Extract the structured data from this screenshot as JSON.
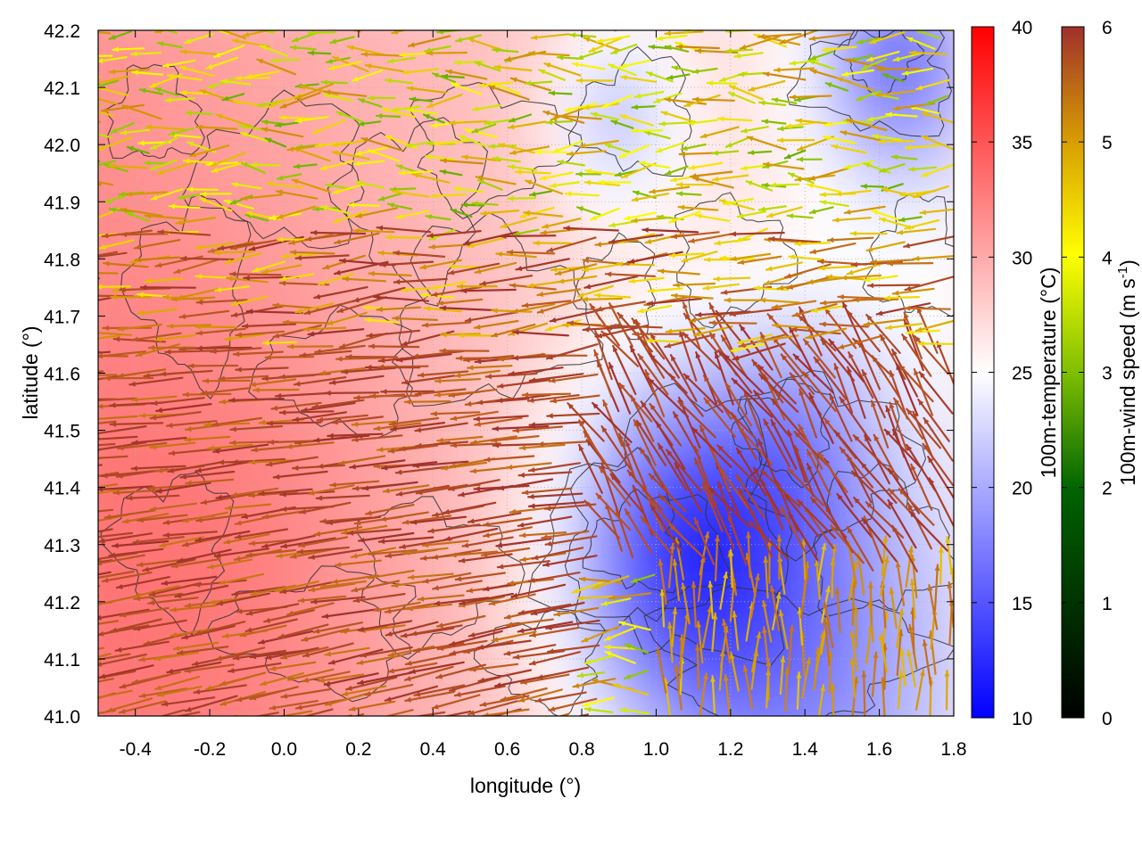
{
  "chart_data": {
    "type": "heatmap",
    "title": "",
    "xlabel": "longitude (°)",
    "ylabel": "latitude (°)",
    "xlim": [
      -0.5,
      1.8
    ],
    "ylim": [
      41.0,
      42.2
    ],
    "x_ticks": [
      "-0.4",
      "-0.2",
      "0.0",
      "0.2",
      "0.4",
      "0.6",
      "0.8",
      "1.0",
      "1.2",
      "1.4",
      "1.6",
      "1.8"
    ],
    "y_ticks": [
      "41.0",
      "41.1",
      "41.2",
      "41.3",
      "41.4",
      "41.5",
      "41.6",
      "41.7",
      "41.8",
      "41.9",
      "42.0",
      "42.1",
      "42.2"
    ],
    "grid": true,
    "layers": [
      "temperature field (color)",
      "contours (black lines)",
      "wind vectors (arrows colored by speed)"
    ],
    "temperature_colorbar": {
      "label": "100m-temperature (°C)",
      "range": [
        10,
        40
      ],
      "ticks": [
        "10",
        "15",
        "20",
        "25",
        "30",
        "35",
        "40"
      ],
      "colors": [
        "#0000ff",
        "#ffffff",
        "#ff0000"
      ]
    },
    "wind_colorbar": {
      "label_main": "100m-wind speed (m s",
      "label_sup": "-1",
      "label_end": ")",
      "range": [
        0,
        6
      ],
      "ticks": [
        "0",
        "1",
        "2",
        "3",
        "4",
        "5",
        "6"
      ],
      "colors": [
        "#000000",
        "#006400",
        "#7fbf00",
        "#ffff00",
        "#d8a000",
        "#c06020",
        "#a0302c"
      ]
    },
    "temperature_field_regions": [
      {
        "region": "west and south-west",
        "approx_temperature": 31
      },
      {
        "region": "central north",
        "approx_temperature": 29
      },
      {
        "region": "south-east around lon 1.0 lat 41.3",
        "approx_temperature": 19
      },
      {
        "region": "north-east corner lon 1.6 lat 42.15",
        "approx_temperature": 17
      },
      {
        "region": "east lon 1.7 lat 41.8",
        "approx_temperature": 24
      }
    ],
    "wind_regimes": [
      {
        "region": "south-west half (lon < 0.9, lat < 41.6)",
        "direction": "from east (arrows pointing west)",
        "speed": 6
      },
      {
        "region": "north (lat > 41.7)",
        "direction": "westward, mixed",
        "speed": 3
      },
      {
        "region": "east (lon > 0.9, lat 41.3-41.6)",
        "direction": "north-west",
        "speed": 6
      },
      {
        "region": "south-east (lon > 1.0, lat < 41.25)",
        "direction": "northward",
        "speed": 4
      }
    ]
  }
}
